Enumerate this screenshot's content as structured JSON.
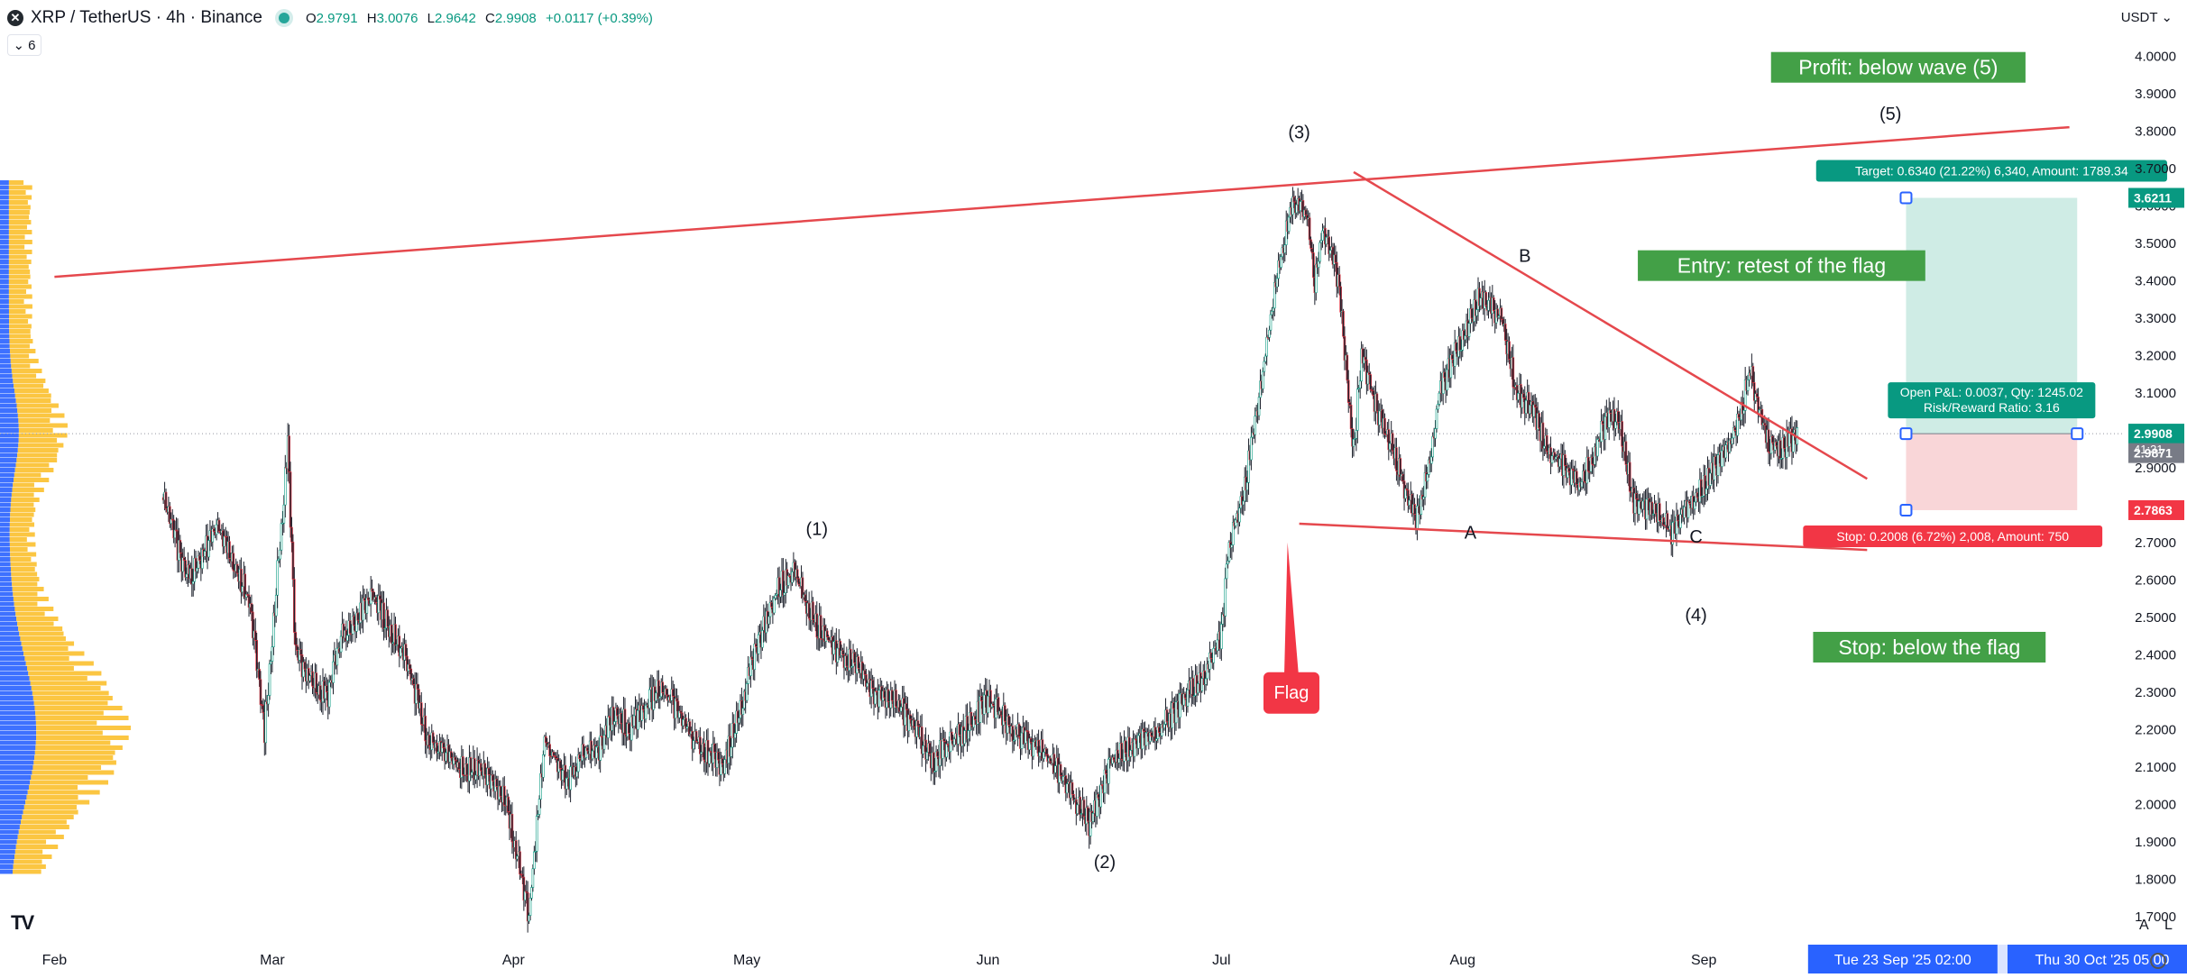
{
  "header": {
    "symbol_icon": "xrp-logo-icon",
    "title": "XRP / TetherUS · 4h · Binance",
    "ohlc": [
      {
        "k": "O",
        "v": "2.9791"
      },
      {
        "k": "H",
        "v": "3.0076"
      },
      {
        "k": "L",
        "v": "2.9642"
      },
      {
        "k": "C",
        "v": "2.9908"
      }
    ],
    "change": "+0.0117 (+0.39%)",
    "indicator_count": "6",
    "currency": "USDT"
  },
  "axis_buttons": {
    "auto": "A",
    "log": "L",
    "settings_icon": "gear-icon"
  },
  "colors": {
    "up": "#089981",
    "down": "#f23645",
    "trendline": "#e5484d",
    "volume_profile_blue": "#2962ff",
    "volume_profile_yellow": "#fbc02d",
    "label_green": "#43a047",
    "target_zone": "#cfece5",
    "stop_zone": "#f9d6d8",
    "date_badge": "#2962ff"
  },
  "chart_data": {
    "type": "line",
    "title": "XRP / TetherUS · 4h · Binance",
    "ylim": [
      1.62,
      4.15
    ],
    "y_ticks": [
      "4.0000",
      "3.9000",
      "3.8000",
      "3.7000",
      "3.6000",
      "3.5000",
      "3.4000",
      "3.3000",
      "3.2000",
      "3.1000",
      "3.0000",
      "2.9000",
      "2.8000",
      "2.7000",
      "2.6000",
      "2.5000",
      "2.4000",
      "2.3000",
      "2.2000",
      "2.1000",
      "2.0000",
      "1.9000",
      "1.8000",
      "1.7000"
    ],
    "x_ticks": [
      "Feb",
      "Mar",
      "Apr",
      "May",
      "Jun",
      "Jul",
      "Aug",
      "Sep"
    ],
    "x_tick_days": [
      0,
      28,
      59,
      89,
      120,
      150,
      181,
      212
    ],
    "x_range_days": [
      -7,
      266
    ],
    "series": [
      {
        "values_x_days": [
          14,
          17,
          21,
          25,
          27,
          30,
          31,
          35,
          37,
          41,
          45,
          48,
          52,
          55,
          58,
          61,
          63,
          66,
          68,
          70,
          72,
          74,
          78,
          82,
          86,
          90,
          93,
          95,
          98,
          101,
          103,
          105,
          108,
          110,
          113,
          117,
          120,
          124,
          127,
          130,
          133,
          136,
          140,
          142,
          144,
          146,
          148,
          150,
          151,
          153,
          155,
          157,
          159,
          161,
          162,
          163,
          165,
          167,
          168,
          170,
          172,
          175,
          177,
          178,
          181,
          183,
          186,
          188,
          190,
          192,
          194,
          196,
          199,
          201,
          203,
          206,
          208,
          210,
          212,
          214,
          216,
          218,
          220,
          222,
          224
        ],
        "values_y": [
          2.82,
          2.6,
          2.74,
          2.55,
          2.2,
          2.95,
          2.4,
          2.28,
          2.45,
          2.55,
          2.4,
          2.18,
          2.1,
          2.08,
          2.02,
          1.7,
          2.18,
          2.05,
          2.15,
          2.14,
          2.25,
          2.2,
          2.32,
          2.18,
          2.1,
          2.4,
          2.58,
          2.62,
          2.48,
          2.4,
          2.38,
          2.3,
          2.28,
          2.22,
          2.12,
          2.2,
          2.28,
          2.18,
          2.15,
          2.05,
          1.95,
          2.12,
          2.18,
          2.2,
          2.25,
          2.3,
          2.35,
          2.45,
          2.7,
          2.85,
          3.1,
          3.4,
          3.6,
          3.58,
          3.4,
          3.55,
          3.4,
          2.95,
          3.2,
          3.05,
          2.95,
          2.75,
          2.95,
          3.1,
          3.25,
          3.35,
          3.3,
          3.1,
          3.05,
          2.95,
          2.9,
          2.85,
          3.0,
          3.05,
          2.8,
          2.78,
          2.72,
          2.8,
          2.85,
          2.92,
          3.0,
          3.15,
          2.98,
          2.95,
          2.99
        ]
      }
    ],
    "last_price": "2.9908",
    "countdown": "41:31",
    "right_price_labels": [
      {
        "value": 3.6211,
        "text": "3.6211",
        "color": "#089981"
      },
      {
        "value": 2.9908,
        "text": "2.9908",
        "color": "#089981"
      },
      {
        "value": 2.9871,
        "text": "2.9871",
        "color": "#787b86"
      },
      {
        "value": 2.7863,
        "text": "2.7863",
        "color": "#f23645"
      }
    ],
    "date_badges": [
      "Tue 23 Sep '25   02:00",
      "Thu 30 Oct '25   05:00"
    ],
    "annotations": {
      "waves": [
        {
          "text": "(1)",
          "x_day": 98,
          "y": 2.72
        },
        {
          "text": "(2)",
          "x_day": 135,
          "y": 1.83
        },
        {
          "text": "(3)",
          "x_day": 160,
          "y": 3.78
        },
        {
          "text": "(4)",
          "x_day": 211,
          "y": 2.49
        },
        {
          "text": "(5)",
          "x_day": 236,
          "y": 3.83
        },
        {
          "text": "A",
          "x_day": 182,
          "y": 2.71
        },
        {
          "text": "B",
          "x_day": 189,
          "y": 3.45
        },
        {
          "text": "C",
          "x_day": 211,
          "y": 2.7
        }
      ],
      "callouts": [
        {
          "text": "Profit: below wave (5)",
          "x_day": 237,
          "y": 3.97,
          "style": "green"
        },
        {
          "text": "Entry: retest of the flag",
          "x_day": 222,
          "y": 3.44,
          "style": "green"
        },
        {
          "text": "Stop: below the flag",
          "x_day": 241,
          "y": 2.42,
          "style": "green"
        },
        {
          "text": "Flag",
          "x_day": 159,
          "y": 2.3,
          "style": "red"
        }
      ],
      "position": {
        "entry": 2.9908,
        "target": 3.6211,
        "stop": 2.7863,
        "target_label": "Target: 0.6340 (21.22%) 6,340, Amount: 1789.34",
        "stop_label": "Stop: 0.2008 (6.72%) 2,008, Amount: 750",
        "pnl_label": "Open P&L: 0.0037, Qty: 1245.02",
        "rr_label": "Risk/Reward Ratio: 3.16"
      },
      "trendlines": [
        {
          "x1_day": 0,
          "y1": 3.41,
          "x2_day": 259,
          "y2": 3.81
        },
        {
          "x1_day": 167,
          "y1": 3.69,
          "x2_day": 233,
          "y2": 2.87
        },
        {
          "x1_day": 160,
          "y1": 2.75,
          "x2_day": 233,
          "y2": 2.68
        }
      ]
    }
  }
}
